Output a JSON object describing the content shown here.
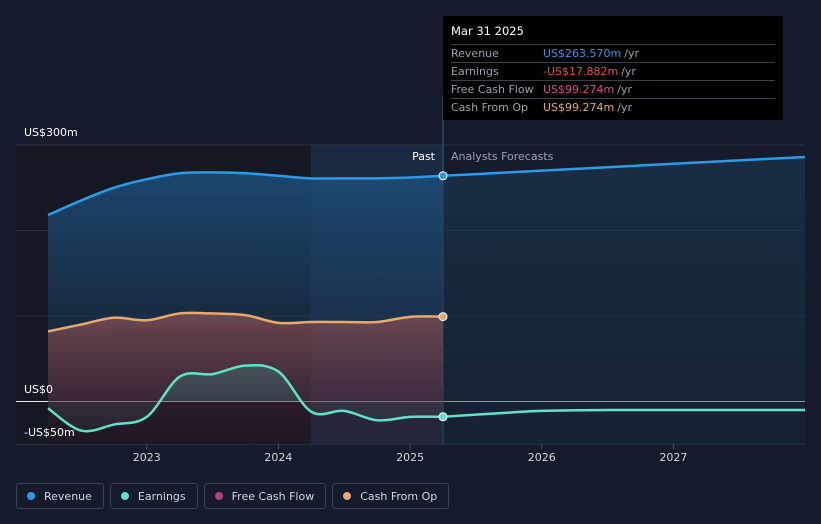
{
  "chart_data": {
    "type": "line",
    "x_ticks": [
      "2023",
      "2024",
      "2025",
      "2026",
      "2027"
    ],
    "y_labels": {
      "top": "US$300m",
      "zero": "US$0",
      "bottom": "-US$50m"
    },
    "ylim": [
      -50,
      300
    ],
    "xlim": [
      2022.25,
      2028.0
    ],
    "past_label": "Past",
    "forecast_label": "Analysts Forecasts",
    "divider_x": 2025.25,
    "series": [
      {
        "name": "Revenue",
        "color": "#2b9be8",
        "points": [
          [
            2022.25,
            218
          ],
          [
            2022.5,
            235
          ],
          [
            2022.75,
            250
          ],
          [
            2023.0,
            260
          ],
          [
            2023.25,
            267
          ],
          [
            2023.5,
            268
          ],
          [
            2023.75,
            267
          ],
          [
            2024.0,
            264
          ],
          [
            2024.25,
            261
          ],
          [
            2024.5,
            261
          ],
          [
            2024.75,
            261
          ],
          [
            2025.0,
            262
          ],
          [
            2025.25,
            264
          ]
        ],
        "forecast": [
          [
            2025.25,
            264
          ],
          [
            2025.5,
            266
          ],
          [
            2026.0,
            270
          ],
          [
            2026.5,
            274
          ],
          [
            2027.0,
            278
          ],
          [
            2027.5,
            282
          ],
          [
            2028.0,
            286
          ]
        ]
      },
      {
        "name": "Earnings",
        "color": "#5fe3c8",
        "points": [
          [
            2022.25,
            -8
          ],
          [
            2022.5,
            -34
          ],
          [
            2022.75,
            -27
          ],
          [
            2023.0,
            -18
          ],
          [
            2023.25,
            29
          ],
          [
            2023.5,
            32
          ],
          [
            2023.75,
            42
          ],
          [
            2024.0,
            35
          ],
          [
            2024.25,
            -12
          ],
          [
            2024.5,
            -11
          ],
          [
            2024.75,
            -22
          ],
          [
            2025.0,
            -18
          ],
          [
            2025.25,
            -17.9
          ]
        ],
        "forecast": [
          [
            2025.25,
            -17.9
          ],
          [
            2025.75,
            -13
          ],
          [
            2026.0,
            -11
          ],
          [
            2026.5,
            -10
          ],
          [
            2027.0,
            -10
          ],
          [
            2027.5,
            -10
          ],
          [
            2028.0,
            -10
          ]
        ]
      },
      {
        "name": "Free Cash Flow",
        "color": "#c03a7e",
        "points": [
          [
            2022.25,
            82
          ],
          [
            2022.5,
            90
          ],
          [
            2022.75,
            98
          ],
          [
            2023.0,
            95
          ],
          [
            2023.25,
            103
          ],
          [
            2023.5,
            103
          ],
          [
            2023.75,
            101
          ],
          [
            2024.0,
            92
          ],
          [
            2024.25,
            93
          ],
          [
            2024.5,
            93
          ],
          [
            2024.75,
            93
          ],
          [
            2025.0,
            99
          ],
          [
            2025.25,
            99.3
          ]
        ],
        "forecast": []
      },
      {
        "name": "Cash From Op",
        "color": "#e8a96a",
        "points": [
          [
            2022.25,
            82
          ],
          [
            2022.5,
            90
          ],
          [
            2022.75,
            98
          ],
          [
            2023.0,
            95
          ],
          [
            2023.25,
            103
          ],
          [
            2023.5,
            103
          ],
          [
            2023.75,
            101
          ],
          [
            2024.0,
            92
          ],
          [
            2024.25,
            93
          ],
          [
            2024.5,
            93
          ],
          [
            2024.75,
            93
          ],
          [
            2025.0,
            99
          ],
          [
            2025.25,
            99.3
          ]
        ],
        "forecast": []
      }
    ]
  },
  "tooltip": {
    "date": "Mar 31 2025",
    "rows": [
      {
        "label": "Revenue",
        "value": "US$263.570m",
        "unit": "/yr",
        "color": "#2b9be8"
      },
      {
        "label": "Earnings",
        "value": "-US$17.882m",
        "unit": "/yr",
        "color": "#e84a4a"
      },
      {
        "label": "Free Cash Flow",
        "value": "US$99.274m",
        "unit": "/yr",
        "color": "#d94d8c"
      },
      {
        "label": "Cash From Op",
        "value": "US$99.274m",
        "unit": "/yr",
        "color": "#e8a96a"
      }
    ]
  },
  "legend": [
    {
      "label": "Revenue",
      "color": "#2b9be8"
    },
    {
      "label": "Earnings",
      "color": "#5fe3c8"
    },
    {
      "label": "Free Cash Flow",
      "color": "#c03a7e"
    },
    {
      "label": "Cash From Op",
      "color": "#e8a96a"
    }
  ]
}
